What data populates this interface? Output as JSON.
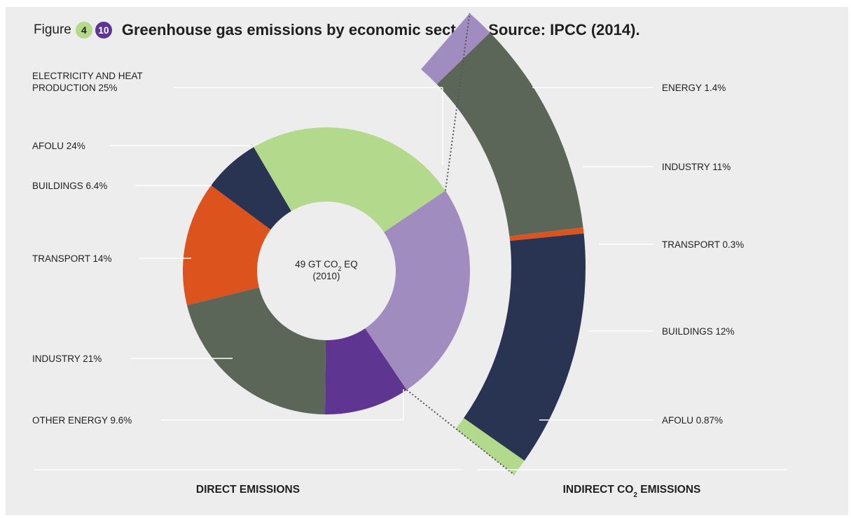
{
  "header": {
    "figure_word": "Figure",
    "badge_chapter": "4",
    "badge_number": "10",
    "title": "Greenhouse gas emissions by economic sectors. Source: IPCC (2014)."
  },
  "center_label": {
    "line1_prefix": "49 GT CO",
    "line1_sub": "2",
    "line1_suffix": " EQ",
    "line2": "(2010)"
  },
  "sections": {
    "direct_label": "DIRECT EMISSIONS",
    "indirect_prefix": "INDIRECT CO",
    "indirect_sub": "2",
    "indirect_suffix": " EMISSIONS"
  },
  "chart_data": [
    {
      "type": "pie",
      "name": "direct",
      "slices": [
        {
          "label": "ELECTRICITY AND HEAT PRODUCTION 25%",
          "label_lines": [
            "ELECTRICITY AND HEAT",
            "PRODUCTION 25%"
          ],
          "sector": "ELECTRICITY AND HEAT PRODUCTION",
          "value": 25,
          "color": "#a08cbf"
        },
        {
          "label": "OTHER ENERGY 9.6%",
          "label_lines": [
            "OTHER ENERGY 9.6%"
          ],
          "sector": "OTHER ENERGY",
          "value": 9.6,
          "color": "#5e3591"
        },
        {
          "label": "INDUSTRY 21%",
          "label_lines": [
            "INDUSTRY 21%"
          ],
          "sector": "INDUSTRY",
          "value": 21,
          "color": "#5b6558"
        },
        {
          "label": "TRANSPORT 14%",
          "label_lines": [
            "TRANSPORT 14%"
          ],
          "sector": "TRANSPORT",
          "value": 14,
          "color": "#dc531e"
        },
        {
          "label": "BUILDINGS 6.4%",
          "label_lines": [
            "BUILDINGS 6.4%"
          ],
          "sector": "BUILDINGS",
          "value": 6.4,
          "color": "#283451"
        },
        {
          "label": "AFOLU 24%",
          "label_lines": [
            "AFOLU 24%"
          ],
          "sector": "AFOLU",
          "value": 24,
          "color": "#b3d98c"
        }
      ]
    },
    {
      "type": "bar",
      "name": "indirect",
      "segments": [
        {
          "label": "ENERGY 1.4%",
          "value": 1.4,
          "color": "#a08cbf"
        },
        {
          "label": "INDUSTRY 11%",
          "value": 11,
          "color": "#5b6558"
        },
        {
          "label": "TRANSPORT 0.3%",
          "value": 0.3,
          "color": "#dc531e"
        },
        {
          "label": "BUILDINGS 12%",
          "value": 12,
          "color": "#283451"
        },
        {
          "label": "AFOLU 0.87%",
          "value": 0.87,
          "color": "#b3d98c"
        }
      ]
    }
  ]
}
